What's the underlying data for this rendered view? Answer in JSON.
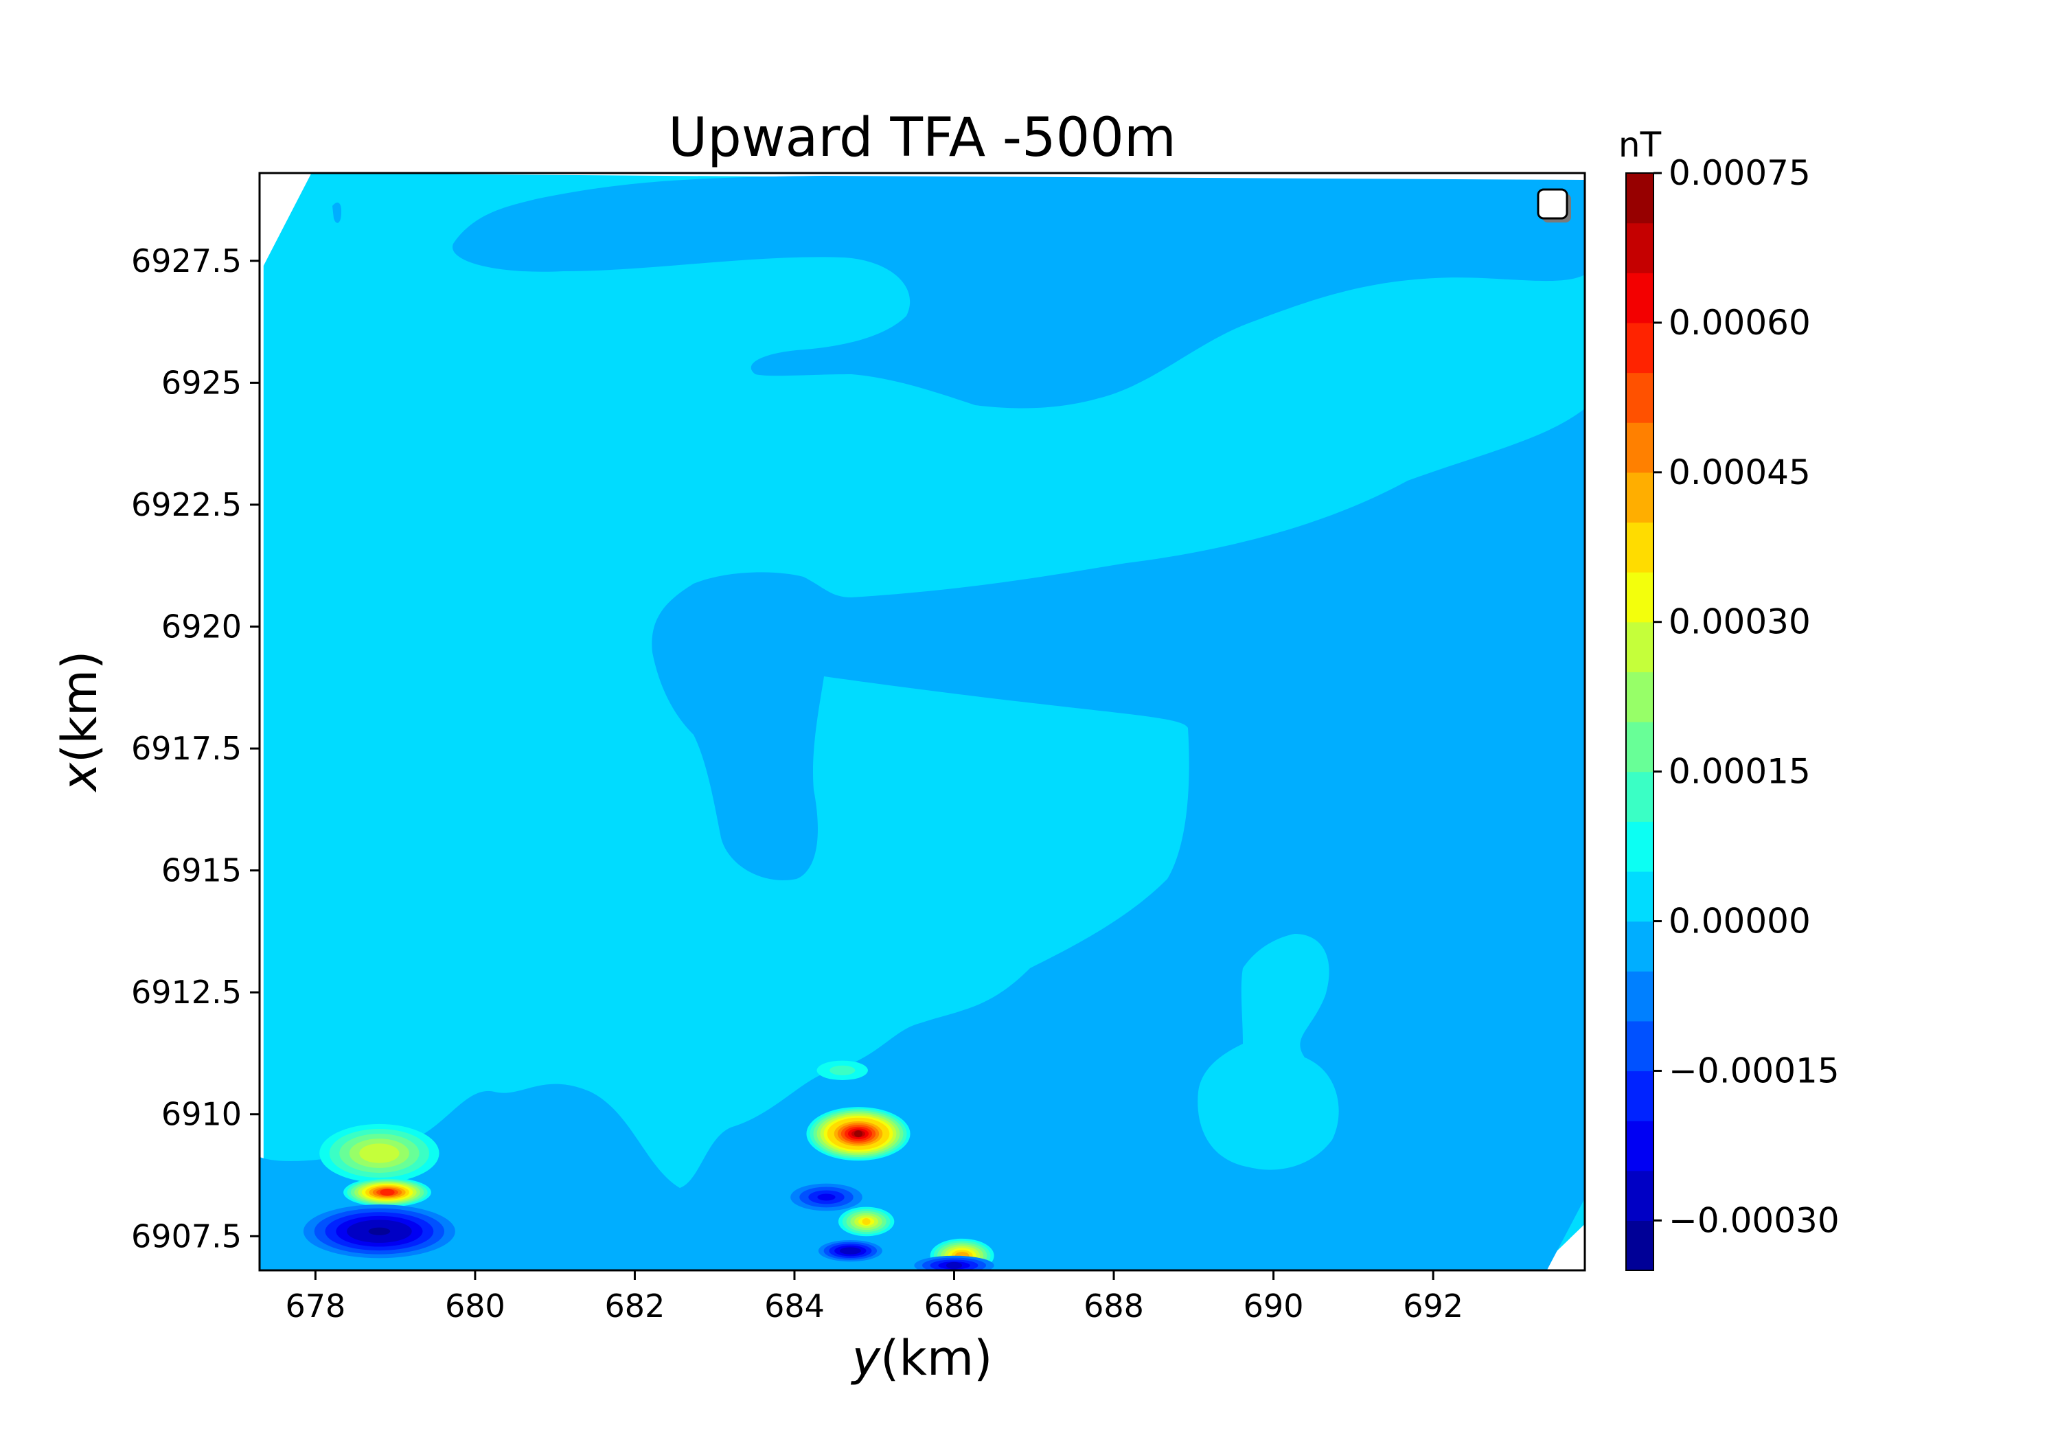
{
  "chart_data": {
    "type": "heatmap",
    "subtype": "filled contour map",
    "title": "Upward TFA -500m",
    "xlabel": {
      "var": "y",
      "unit": "(km)"
    },
    "ylabel": {
      "var": "x",
      "unit": "(km)"
    },
    "xlim": [
      677.3,
      693.9
    ],
    "ylim": [
      6906.8,
      6929.3
    ],
    "xticks": [
      678,
      680,
      682,
      684,
      686,
      688,
      690,
      692
    ],
    "xtick_labels": [
      "678",
      "680",
      "682",
      "684",
      "686",
      "688",
      "690",
      "692"
    ],
    "yticks": [
      6907.5,
      6910,
      6912.5,
      6915,
      6917.5,
      6920,
      6922.5,
      6925,
      6927.5
    ],
    "ytick_labels": [
      "6907.5",
      "6910",
      "6912.5",
      "6915",
      "6917.5",
      "6920",
      "6922.5",
      "6925",
      "6927.5"
    ],
    "colormap": "jet",
    "colorbar": {
      "unit_label": "nT",
      "vmin": -0.00035,
      "vmax": 0.00075,
      "levels": 22,
      "ticks": [
        0.00075,
        0.0006,
        0.00045,
        0.0003,
        0.00015,
        0.0,
        -0.00015,
        -0.0003
      ],
      "tick_labels": [
        "0.00075",
        "0.00060",
        "0.00045",
        "0.00030",
        "0.00015",
        "0.00000",
        "−0.00015",
        "−0.00030"
      ]
    },
    "background_level": 0.0,
    "legend_placement": "upper right (empty)",
    "regions": [
      {
        "level": 2e-05,
        "description": "western half and a band across the northeast"
      },
      {
        "level": -3e-05,
        "description": "eastern half, northern tongue and central lobe near y=683.5, x=6918"
      }
    ],
    "anomalies": [
      {
        "y": 684.8,
        "x": 6909.6,
        "peak": 0.00073
      },
      {
        "y": 684.4,
        "x": 6908.3,
        "peak": -0.00023
      },
      {
        "y": 684.9,
        "x": 6907.8,
        "peak": 0.00035
      },
      {
        "y": 684.7,
        "x": 6907.2,
        "peak": -0.0003
      },
      {
        "y": 686.1,
        "x": 6907.1,
        "peak": 0.00045
      },
      {
        "y": 686.0,
        "x": 6906.9,
        "peak": -0.00025
      },
      {
        "y": 684.6,
        "x": 6910.9,
        "peak": 0.00012
      },
      {
        "y": 678.8,
        "x": 6909.2,
        "peak": 0.0003
      },
      {
        "y": 678.9,
        "x": 6908.4,
        "peak": 0.0006
      },
      {
        "y": 678.8,
        "x": 6907.6,
        "peak": -0.00034
      }
    ]
  }
}
